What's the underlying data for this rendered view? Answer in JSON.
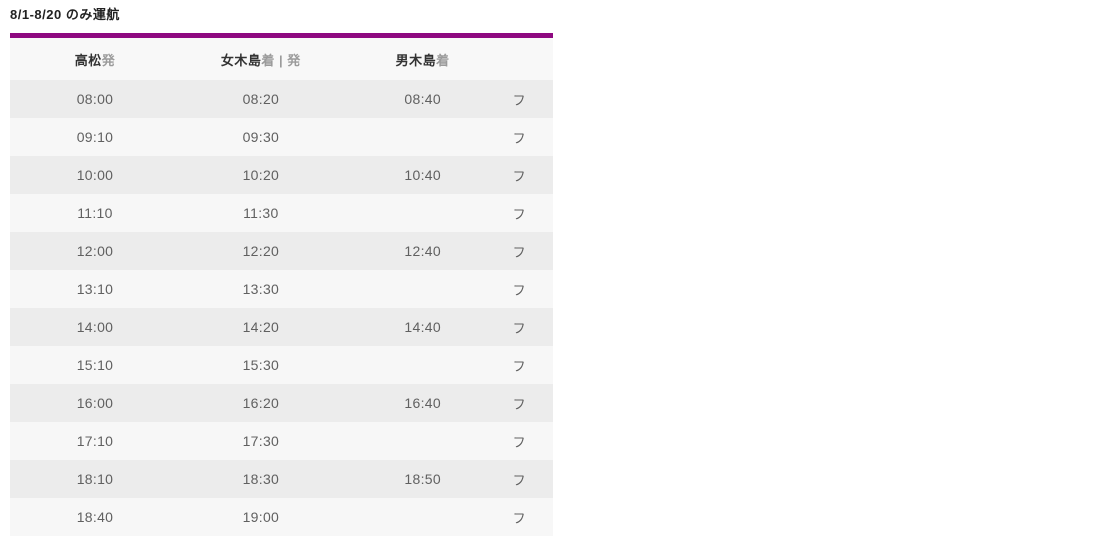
{
  "title": "8/1-8/20 のみ運航",
  "colors": {
    "accent_bar": "#8e0980",
    "header_bg": "#f8f8f8",
    "row_odd_bg": "#ececec",
    "row_even_bg": "#f7f7f7",
    "header_text": "#333333",
    "header_suffix_text": "#9b9b9b",
    "cell_text": "#606060"
  },
  "table": {
    "columns": [
      {
        "station": "高松",
        "suffix": "発"
      },
      {
        "station": "女木島",
        "suffix": "着 | 発"
      },
      {
        "station": "男木島",
        "suffix": "着"
      },
      {
        "station": "",
        "suffix": ""
      }
    ],
    "rows": [
      {
        "takamatsu": "08:00",
        "megijima": "08:20",
        "ogijima": "08:40",
        "note": "フ"
      },
      {
        "takamatsu": "09:10",
        "megijima": "09:30",
        "ogijima": "",
        "note": "フ"
      },
      {
        "takamatsu": "10:00",
        "megijima": "10:20",
        "ogijima": "10:40",
        "note": "フ"
      },
      {
        "takamatsu": "11:10",
        "megijima": "11:30",
        "ogijima": "",
        "note": "フ"
      },
      {
        "takamatsu": "12:00",
        "megijima": "12:20",
        "ogijima": "12:40",
        "note": "フ"
      },
      {
        "takamatsu": "13:10",
        "megijima": "13:30",
        "ogijima": "",
        "note": "フ"
      },
      {
        "takamatsu": "14:00",
        "megijima": "14:20",
        "ogijima": "14:40",
        "note": "フ"
      },
      {
        "takamatsu": "15:10",
        "megijima": "15:30",
        "ogijima": "",
        "note": "フ"
      },
      {
        "takamatsu": "16:00",
        "megijima": "16:20",
        "ogijima": "16:40",
        "note": "フ"
      },
      {
        "takamatsu": "17:10",
        "megijima": "17:30",
        "ogijima": "",
        "note": "フ"
      },
      {
        "takamatsu": "18:10",
        "megijima": "18:30",
        "ogijima": "18:50",
        "note": "フ"
      },
      {
        "takamatsu": "18:40",
        "megijima": "19:00",
        "ogijima": "",
        "note": "フ"
      }
    ]
  }
}
